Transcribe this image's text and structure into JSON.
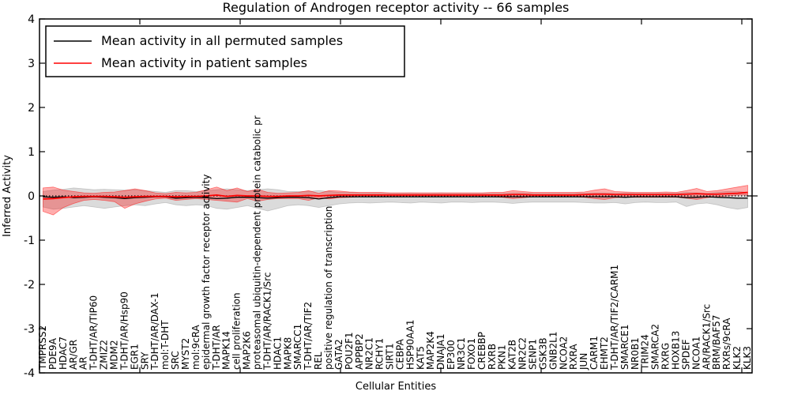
{
  "chart_data": {
    "type": "line",
    "title": "Regulation of Androgen receptor activity -- 66 samples",
    "xlabel": "Cellular Entities",
    "ylabel": "Inferred Activity",
    "ylim": [
      -4,
      4
    ],
    "yticks": [
      4,
      3,
      2,
      1,
      0,
      -1,
      -2,
      -3,
      -4
    ],
    "grid": false,
    "legend_position": "upper left",
    "reference_line": {
      "y": 0,
      "style": "dotted",
      "color": "#000000"
    },
    "categories": [
      "TMPRSS2",
      "PDE9A",
      "HDAC7",
      "AR/GR",
      "AR",
      "T-DHT/AR/TIP60",
      "ZMIZ2",
      "MDM2",
      "T-DHT/AR/Hsp90",
      "EGR1",
      "SRY",
      "T-DHT/AR/DAX-1",
      "mol:T-DHT",
      "SRC",
      "MYST2",
      "mol:9cRA",
      "epidermal growth factor receptor activity",
      "T-DHT/AR",
      "MAPK14",
      "cell proliferation",
      "MAP2K6",
      "proteasomal ubiquitin-dependent protein catabolic pr",
      "T-DHT/AR/RACK1/Src",
      "HDAC1",
      "MAPK8",
      "SMARCC1",
      "T-DHT/AR/TIF2",
      "REL",
      "positive regulation of transcription",
      "GATA2",
      "POU2F1",
      "APPBP2",
      "NR2C1",
      "RCHY1",
      "SIRT1",
      "CEBPA",
      "HSP90AA1",
      "KAT5",
      "MAP2K4",
      "DNAJA1",
      "EP300",
      "NR3C1",
      "FOXO1",
      "CREBBP",
      "RXRB",
      "PKN1",
      "KAT2B",
      "NR2C2",
      "SENP1",
      "GSK3B",
      "GNB2L1",
      "NCOA2",
      "RXRA",
      "JUN",
      "CARM1",
      "EHMT2",
      "T-DHT/AR/TIF2/CARM1",
      "SMARCE1",
      "NR0B1",
      "TRIM24",
      "SMARCA2",
      "RXRG",
      "HOXB13",
      "SPDEF",
      "NCOA1",
      "AR/RACK1/Src",
      "BRM/BAF57",
      "RXRs/9cRA",
      "KLK2",
      "KLK3"
    ],
    "series": [
      {
        "name": "Mean activity in all permuted samples",
        "color": "#000000",
        "band_color": "#999999",
        "values": [
          -0.02,
          -0.03,
          -0.02,
          -0.04,
          -0.03,
          -0.02,
          -0.03,
          -0.04,
          -0.06,
          -0.04,
          -0.03,
          -0.02,
          -0.02,
          -0.05,
          -0.04,
          -0.03,
          -0.04,
          -0.06,
          -0.05,
          -0.03,
          -0.03,
          -0.04,
          -0.05,
          -0.04,
          -0.03,
          -0.03,
          -0.04,
          -0.07,
          -0.04,
          -0.02,
          -0.02,
          -0.02,
          -0.02,
          -0.02,
          -0.02,
          -0.02,
          -0.02,
          -0.02,
          -0.02,
          -0.02,
          -0.02,
          -0.02,
          -0.02,
          -0.02,
          -0.02,
          -0.02,
          -0.02,
          -0.02,
          -0.02,
          -0.02,
          -0.02,
          -0.02,
          -0.02,
          -0.02,
          -0.02,
          -0.02,
          -0.02,
          -0.03,
          -0.02,
          -0.02,
          -0.02,
          -0.02,
          -0.02,
          -0.04,
          -0.03,
          -0.02,
          -0.03,
          -0.04,
          -0.05,
          -0.05
        ],
        "band_upper": [
          0.1,
          0.13,
          0.15,
          0.18,
          0.16,
          0.14,
          0.15,
          0.14,
          0.13,
          0.14,
          0.12,
          0.1,
          0.08,
          0.12,
          0.12,
          0.1,
          0.12,
          0.14,
          0.16,
          0.14,
          0.12,
          0.14,
          0.16,
          0.14,
          0.1,
          0.1,
          0.1,
          0.12,
          0.1,
          0.08,
          0.08,
          0.07,
          0.07,
          0.07,
          0.06,
          0.06,
          0.07,
          0.06,
          0.06,
          0.07,
          0.06,
          0.06,
          0.06,
          0.06,
          0.06,
          0.06,
          0.07,
          0.07,
          0.06,
          0.06,
          0.06,
          0.06,
          0.06,
          0.06,
          0.07,
          0.07,
          0.06,
          0.07,
          0.06,
          0.06,
          0.06,
          0.06,
          0.06,
          0.08,
          0.07,
          0.06,
          0.08,
          0.1,
          0.1,
          0.08
        ],
        "band_lower": [
          -0.25,
          -0.3,
          -0.28,
          -0.25,
          -0.22,
          -0.25,
          -0.28,
          -0.25,
          -0.22,
          -0.2,
          -0.22,
          -0.18,
          -0.15,
          -0.2,
          -0.22,
          -0.2,
          -0.22,
          -0.28,
          -0.3,
          -0.26,
          -0.22,
          -0.28,
          -0.34,
          -0.28,
          -0.22,
          -0.2,
          -0.22,
          -0.26,
          -0.22,
          -0.18,
          -0.16,
          -0.15,
          -0.16,
          -0.15,
          -0.14,
          -0.15,
          -0.16,
          -0.14,
          -0.15,
          -0.16,
          -0.14,
          -0.14,
          -0.15,
          -0.14,
          -0.14,
          -0.15,
          -0.17,
          -0.15,
          -0.14,
          -0.14,
          -0.14,
          -0.14,
          -0.14,
          -0.15,
          -0.16,
          -0.16,
          -0.15,
          -0.18,
          -0.15,
          -0.14,
          -0.15,
          -0.15,
          -0.14,
          -0.24,
          -0.18,
          -0.16,
          -0.2,
          -0.26,
          -0.3,
          -0.26
        ]
      },
      {
        "name": "Mean activity in patient samples",
        "color": "#ff0000",
        "band_color": "#ff0000",
        "values": [
          -0.07,
          -0.06,
          -0.04,
          -0.02,
          -0.01,
          -0.01,
          -0.01,
          -0.02,
          -0.03,
          -0.02,
          -0.01,
          -0.01,
          -0.01,
          -0.02,
          -0.01,
          -0.01,
          0.0,
          0.02,
          -0.01,
          0.01,
          0.0,
          0.0,
          -0.01,
          -0.01,
          0.0,
          0.0,
          0.01,
          0.0,
          0.01,
          0.02,
          0.02,
          0.02,
          0.02,
          0.02,
          0.02,
          0.02,
          0.02,
          0.02,
          0.02,
          0.02,
          0.02,
          0.02,
          0.02,
          0.02,
          0.02,
          0.02,
          0.03,
          0.03,
          0.02,
          0.02,
          0.02,
          0.02,
          0.02,
          0.03,
          0.04,
          0.04,
          0.03,
          0.03,
          0.03,
          0.03,
          0.03,
          0.03,
          0.03,
          0.04,
          0.05,
          0.04,
          0.04,
          0.05,
          0.06,
          0.08
        ],
        "band_upper": [
          0.18,
          0.2,
          0.13,
          0.1,
          0.07,
          0.06,
          0.08,
          0.09,
          0.12,
          0.16,
          0.12,
          0.07,
          0.05,
          0.08,
          0.07,
          0.08,
          0.14,
          0.2,
          0.12,
          0.18,
          0.1,
          0.15,
          0.08,
          0.06,
          0.07,
          0.08,
          0.12,
          0.06,
          0.12,
          0.11,
          0.09,
          0.08,
          0.08,
          0.08,
          0.07,
          0.07,
          0.07,
          0.07,
          0.07,
          0.07,
          0.07,
          0.07,
          0.07,
          0.07,
          0.08,
          0.08,
          0.12,
          0.1,
          0.08,
          0.08,
          0.08,
          0.08,
          0.08,
          0.09,
          0.13,
          0.16,
          0.1,
          0.09,
          0.08,
          0.08,
          0.08,
          0.09,
          0.08,
          0.12,
          0.17,
          0.1,
          0.12,
          0.16,
          0.2,
          0.24
        ],
        "band_lower": [
          -0.35,
          -0.43,
          -0.26,
          -0.17,
          -0.1,
          -0.08,
          -0.1,
          -0.13,
          -0.28,
          -0.18,
          -0.12,
          -0.07,
          -0.05,
          -0.1,
          -0.08,
          -0.06,
          -0.08,
          -0.1,
          -0.12,
          -0.14,
          -0.06,
          -0.12,
          -0.08,
          -0.06,
          -0.06,
          -0.06,
          -0.1,
          -0.04,
          -0.07,
          -0.04,
          -0.03,
          -0.02,
          -0.02,
          -0.02,
          -0.02,
          -0.02,
          -0.02,
          -0.02,
          -0.02,
          -0.02,
          -0.02,
          -0.02,
          -0.02,
          -0.02,
          -0.02,
          -0.03,
          -0.06,
          -0.04,
          -0.02,
          -0.02,
          -0.02,
          -0.02,
          -0.02,
          -0.03,
          -0.06,
          -0.08,
          -0.04,
          -0.03,
          -0.03,
          -0.03,
          -0.03,
          -0.03,
          -0.03,
          -0.05,
          -0.08,
          -0.04,
          -0.02,
          0.0,
          0.02,
          0.02
        ]
      }
    ]
  }
}
